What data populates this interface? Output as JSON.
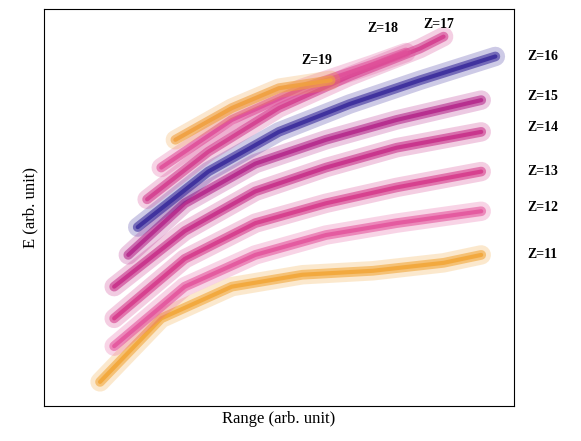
{
  "chart_data": {
    "type": "line",
    "x_label": "Range (arb. unit)",
    "y_label": "E (arb. unit)",
    "xlim": [
      0,
      100
    ],
    "ylim": [
      0,
      100
    ],
    "xticks": [],
    "yticks": [],
    "tick_labels": false,
    "grid": false,
    "series": [
      {
        "color": "#f2a73a",
        "x": [
          12,
          25,
          40,
          55,
          70,
          85,
          93
        ],
        "values": [
          6,
          22,
          30,
          33,
          34,
          36,
          38
        ]
      },
      {
        "color": "#e4569e",
        "x": [
          15,
          30,
          45,
          60,
          75,
          93
        ],
        "values": [
          15,
          30,
          38,
          43,
          46,
          49
        ]
      },
      {
        "color": "#d63c8c",
        "x": [
          15,
          30,
          45,
          60,
          75,
          93
        ],
        "values": [
          22,
          37,
          46,
          51,
          55,
          59
        ]
      },
      {
        "color": "#c8308a",
        "x": [
          15,
          30,
          45,
          60,
          75,
          93
        ],
        "values": [
          30,
          44,
          54,
          60,
          65,
          69
        ]
      },
      {
        "color": "#b5298c",
        "x": [
          18,
          30,
          45,
          60,
          75,
          93
        ],
        "values": [
          38,
          51,
          61,
          67,
          72,
          77
        ]
      },
      {
        "color": "#3b2c9c",
        "x": [
          20,
          35,
          50,
          65,
          80,
          96
        ],
        "values": [
          45,
          59,
          69,
          76,
          82,
          88
        ]
      },
      {
        "color": "#d44090",
        "x": [
          22,
          35,
          50,
          65,
          80,
          85
        ],
        "values": [
          52,
          64,
          75,
          83,
          90,
          93
        ]
      },
      {
        "color": "#e0509a",
        "x": [
          25,
          40,
          55,
          70,
          77
        ],
        "values": [
          60,
          72,
          80,
          86,
          89
        ]
      },
      {
        "color": "#f0a040",
        "x": [
          28,
          40,
          50,
          61
        ],
        "values": [
          67,
          75,
          80,
          82
        ]
      }
    ],
    "annotations": [
      {
        "text": "Z=11",
        "x": 106,
        "y": 38
      },
      {
        "text": "Z=12",
        "x": 106,
        "y": 50
      },
      {
        "text": "Z=13",
        "x": 106,
        "y": 59
      },
      {
        "text": "Z=14",
        "x": 106,
        "y": 70
      },
      {
        "text": "Z=15",
        "x": 106,
        "y": 78
      },
      {
        "text": "Z=16",
        "x": 106,
        "y": 88
      },
      {
        "text": "Z=17",
        "x": 84,
        "y": 96
      },
      {
        "text": "Z=18",
        "x": 72,
        "y": 95
      },
      {
        "text": "Z=19",
        "x": 58,
        "y": 87
      }
    ]
  }
}
